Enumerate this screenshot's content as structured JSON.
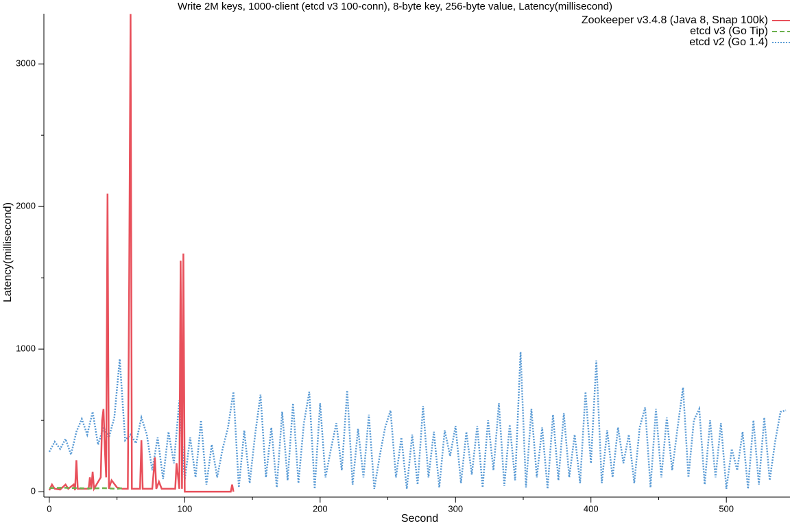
{
  "chart_data": {
    "type": "line",
    "title": "Write 2M keys, 1000-client (etcd v3 100-conn), 8-byte key, 256-byte value, Latency(millisecond)",
    "x_label": "Second",
    "y_label": "Latency(millisecond)",
    "xlim": [
      -4,
      547
    ],
    "ylim": [
      -38,
      3352
    ],
    "xticks": [
      0,
      100,
      200,
      300,
      400,
      500
    ],
    "xminorticks": [
      50,
      150,
      250,
      350,
      450
    ],
    "yticks": [
      0,
      1000,
      2000,
      3000
    ],
    "yminorticks": [
      500,
      1500,
      2500
    ],
    "legend": "upper right",
    "series": [
      {
        "name": "Zookeeper v3.4.8 (Java 8, Snap 100k)",
        "color": "#e8505b",
        "dash": "solid",
        "x": [
          0,
          2,
          4,
          8,
          12,
          14,
          18,
          19,
          20,
          21,
          29,
          30,
          31,
          32,
          33,
          38,
          39,
          40,
          41,
          42,
          43,
          44,
          46,
          50,
          54,
          58,
          59,
          60,
          61,
          67,
          68,
          69,
          76,
          78,
          79,
          81,
          83,
          93,
          94,
          96,
          97,
          98,
          99,
          100,
          120,
          134,
          135,
          136
        ],
        "values": [
          10,
          50,
          20,
          15,
          50,
          20,
          50,
          10,
          220,
          20,
          20,
          100,
          20,
          140,
          20,
          100,
          500,
          580,
          300,
          100,
          2090,
          20,
          80,
          30,
          20,
          20,
          1500,
          3350,
          20,
          20,
          360,
          20,
          20,
          240,
          20,
          70,
          20,
          20,
          200,
          20,
          1620,
          20,
          1670,
          0,
          0,
          0,
          50,
          0
        ]
      },
      {
        "name": "etcd v3 (Go Tip)",
        "color": "#6ab04c",
        "dash": "dashed",
        "x": [
          0,
          10,
          20,
          30,
          40,
          50,
          55
        ],
        "values": [
          25,
          28,
          25,
          22,
          25,
          20,
          25
        ]
      },
      {
        "name": "etcd v2 (Go 1.4)",
        "color": "#5a9bd5",
        "dash": "dotted",
        "x": [
          0,
          4,
          8,
          12,
          16,
          20,
          24,
          28,
          32,
          36,
          40,
          44,
          48,
          52,
          56,
          60,
          64,
          68,
          72,
          76,
          80,
          84,
          88,
          92,
          96,
          100,
          104,
          108,
          112,
          116,
          120,
          124,
          128,
          132,
          136,
          140,
          144,
          148,
          152,
          156,
          160,
          164,
          168,
          172,
          176,
          180,
          184,
          188,
          192,
          196,
          200,
          204,
          208,
          212,
          216,
          220,
          224,
          228,
          232,
          236,
          240,
          244,
          248,
          252,
          256,
          260,
          264,
          268,
          272,
          276,
          280,
          284,
          288,
          292,
          296,
          300,
          304,
          308,
          312,
          316,
          320,
          324,
          328,
          332,
          336,
          340,
          344,
          348,
          352,
          356,
          360,
          364,
          368,
          372,
          376,
          380,
          384,
          388,
          392,
          396,
          400,
          404,
          408,
          412,
          416,
          420,
          424,
          428,
          432,
          436,
          440,
          444,
          448,
          452,
          456,
          460,
          464,
          468,
          472,
          476,
          480,
          484,
          488,
          492,
          496,
          500,
          504,
          508,
          512,
          516,
          520,
          524,
          528,
          532,
          536,
          540,
          544
        ],
        "values": [
          280,
          350,
          300,
          370,
          260,
          420,
          510,
          400,
          560,
          330,
          450,
          380,
          520,
          930,
          360,
          400,
          340,
          520,
          400,
          150,
          380,
          90,
          420,
          200,
          640,
          80,
          380,
          100,
          500,
          50,
          330,
          100,
          300,
          450,
          700,
          30,
          430,
          60,
          400,
          680,
          100,
          450,
          30,
          560,
          80,
          620,
          60,
          480,
          700,
          20,
          620,
          100,
          300,
          480,
          150,
          710,
          50,
          440,
          100,
          540,
          20,
          250,
          450,
          570,
          100,
          380,
          20,
          400,
          50,
          600,
          100,
          420,
          30,
          430,
          250,
          460,
          60,
          420,
          120,
          460,
          30,
          500,
          150,
          620,
          40,
          470,
          80,
          980,
          30,
          580,
          100,
          450,
          20,
          540,
          80,
          550,
          100,
          400,
          60,
          700,
          200,
          920,
          60,
          430,
          100,
          450,
          200,
          400,
          60,
          450,
          590,
          30,
          580,
          100,
          520,
          150,
          450,
          730,
          100,
          500,
          580,
          50,
          500,
          100,
          480,
          20,
          300,
          150,
          420,
          20,
          500,
          50,
          520,
          80,
          350,
          560,
          570
        ]
      }
    ]
  }
}
